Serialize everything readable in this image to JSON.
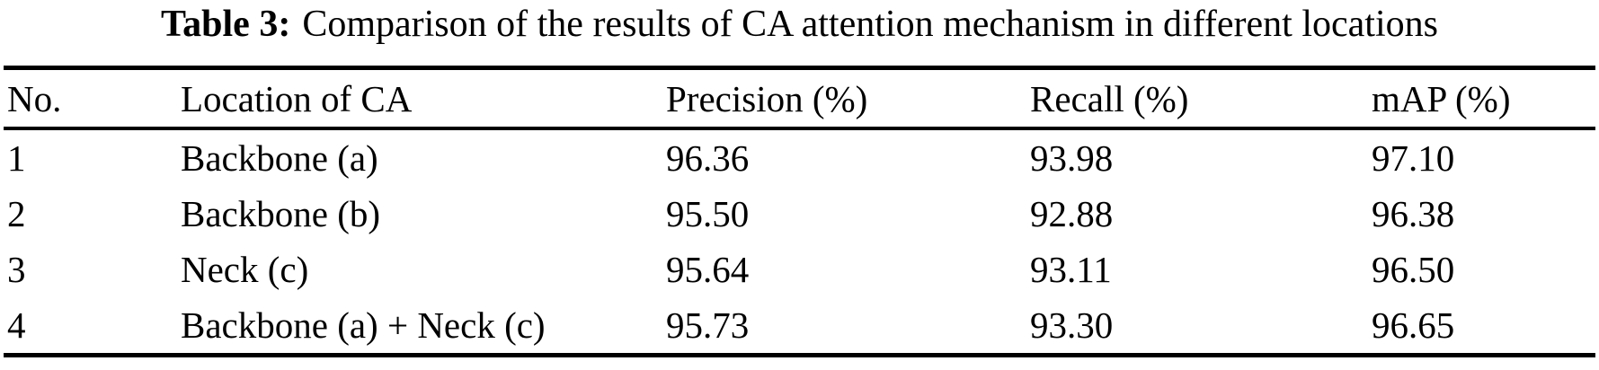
{
  "table": {
    "caption": {
      "label": "Table 3:",
      "text": "Comparison of the results of CA attention mechanism in different locations"
    },
    "columns": [
      "No.",
      "Location of CA",
      "Precision (%)",
      "Recall (%)",
      "mAP (%)"
    ],
    "rows": [
      [
        "1",
        "Backbone (a)",
        "96.36",
        "93.98",
        "97.10"
      ],
      [
        "2",
        "Backbone (b)",
        "95.50",
        "92.88",
        "96.38"
      ],
      [
        "3",
        "Neck (c)",
        "95.64",
        "93.11",
        "96.50"
      ],
      [
        "4",
        "Backbone (a) + Neck (c)",
        "95.73",
        "93.30",
        "96.65"
      ]
    ]
  }
}
